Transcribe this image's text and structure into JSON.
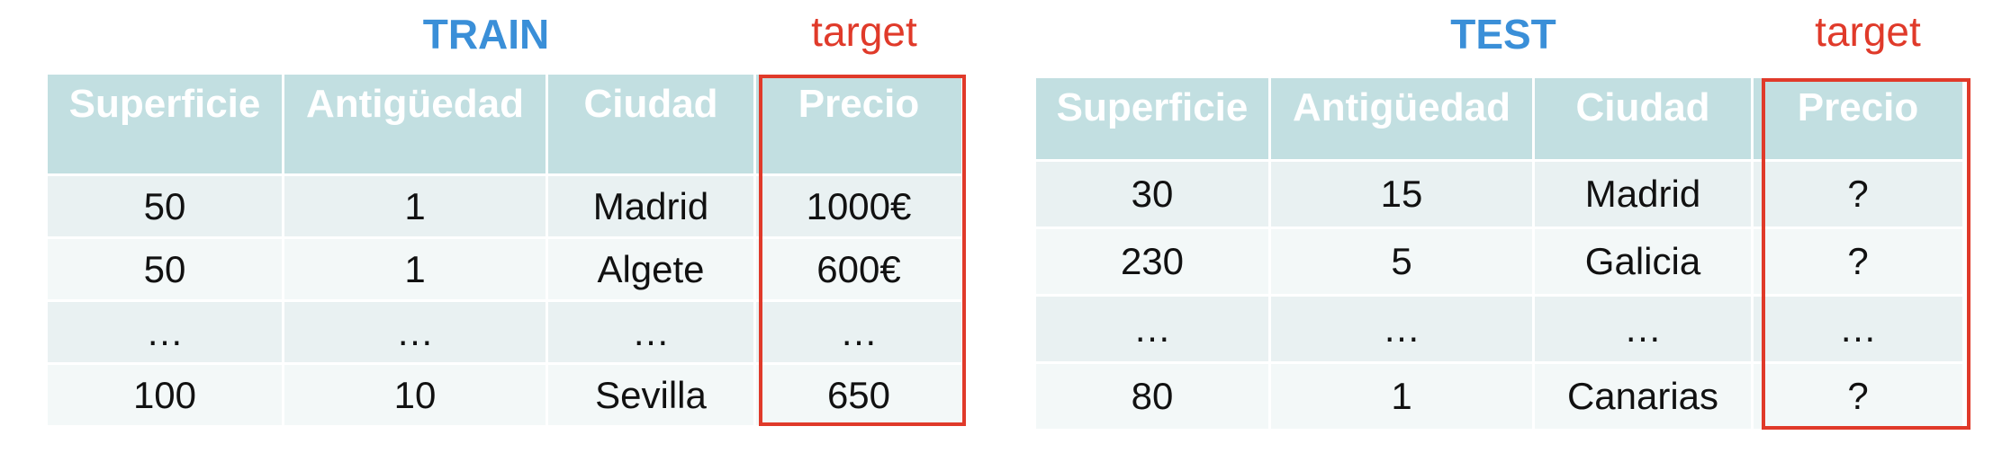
{
  "train": {
    "title": "TRAIN",
    "target_label": "target",
    "columns": [
      "Superficie",
      "Antigüedad",
      "Ciudad",
      "Precio"
    ],
    "rows": [
      [
        "50",
        "1",
        "Madrid",
        "1000€"
      ],
      [
        "50",
        "1",
        "Algete",
        "600€"
      ],
      [
        "…",
        "…",
        "…",
        "…"
      ],
      [
        "100",
        "10",
        "Sevilla",
        "650"
      ]
    ]
  },
  "test": {
    "title": "TEST",
    "target_label": "target",
    "columns": [
      "Superficie",
      "Antigüedad",
      "Ciudad",
      "Precio"
    ],
    "rows": [
      [
        "30",
        "15",
        "Madrid",
        "?"
      ],
      [
        "230",
        "5",
        "Galicia",
        "?"
      ],
      [
        "…",
        "…",
        "…",
        "…"
      ],
      [
        "80",
        "1",
        "Canarias",
        "?"
      ]
    ]
  },
  "colors": {
    "title": "#3a8fd8",
    "target": "#e03a2a",
    "header_bg": "#c2dfe1",
    "row_even": "#e9f1f2",
    "row_odd": "#f3f8f8"
  }
}
